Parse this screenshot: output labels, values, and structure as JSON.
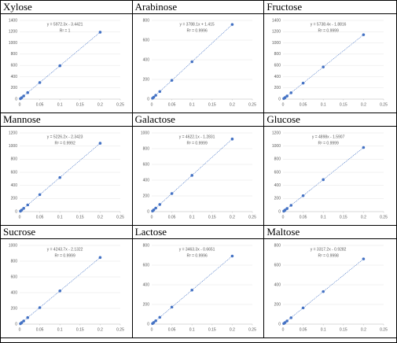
{
  "chart_data": [
    {
      "type": "scatter",
      "title": "Xylose",
      "x": [
        0.002,
        0.005,
        0.01,
        0.02,
        0.05,
        0.1,
        0.2
      ],
      "values": [
        8,
        26,
        56,
        116,
        295,
        594,
        1191
      ],
      "color": "#4472c4",
      "trendline": {
        "label": "y = 5972.3x - 3.4421",
        "slope": 5972.3,
        "intercept": -3.4421
      },
      "r2_label": "R² = 1",
      "xlim": [
        0,
        0.25
      ],
      "xticks": [
        0,
        0.05,
        0.1,
        0.15,
        0.2,
        0.25
      ],
      "ylim": [
        0,
        1400
      ],
      "yticks": [
        0,
        200,
        400,
        600,
        800,
        1000,
        1200,
        1400
      ],
      "grid": true
    },
    {
      "type": "scatter",
      "title": "Arabinose",
      "x": [
        0.002,
        0.005,
        0.01,
        0.02,
        0.05,
        0.1,
        0.2
      ],
      "values": [
        9,
        20,
        39,
        77,
        191,
        380,
        759
      ],
      "color": "#4472c4",
      "trendline": {
        "label": "y = 3788.1x + 1.415",
        "slope": 3788.1,
        "intercept": 1.415
      },
      "r2_label": "R² = 0.9996",
      "xlim": [
        0,
        0.25
      ],
      "xticks": [
        0,
        0.05,
        0.1,
        0.15,
        0.2,
        0.25
      ],
      "ylim": [
        0,
        800
      ],
      "yticks": [
        0,
        200,
        400,
        600,
        800
      ],
      "grid": true
    },
    {
      "type": "scatter",
      "title": "Fructose",
      "x": [
        0.002,
        0.005,
        0.01,
        0.02,
        0.05,
        0.1,
        0.2
      ],
      "values": [
        10,
        27,
        55,
        113,
        285,
        572,
        1146
      ],
      "color": "#4472c4",
      "trendline": {
        "label": "y = 5738.4x - 1.8816",
        "slope": 5738.4,
        "intercept": -1.8816
      },
      "r2_label": "R² = 0.9999",
      "xlim": [
        0,
        0.25
      ],
      "xticks": [
        0,
        0.05,
        0.1,
        0.15,
        0.2,
        0.25
      ],
      "ylim": [
        0,
        1400
      ],
      "yticks": [
        0,
        200,
        400,
        600,
        800,
        1000,
        1200,
        1400
      ],
      "grid": true
    },
    {
      "type": "scatter",
      "title": "Mannose",
      "x": [
        0.002,
        0.005,
        0.01,
        0.02,
        0.05,
        0.1,
        0.2
      ],
      "values": [
        8,
        24,
        50,
        102,
        259,
        520,
        1043
      ],
      "color": "#4472c4",
      "trendline": {
        "label": "y = 5226.2x - 2.3423",
        "slope": 5226.2,
        "intercept": -2.3423
      },
      "r2_label": "R² = 0.9992",
      "xlim": [
        0,
        0.25
      ],
      "xticks": [
        0,
        0.05,
        0.1,
        0.15,
        0.2,
        0.25
      ],
      "ylim": [
        0,
        1200
      ],
      "yticks": [
        0,
        200,
        400,
        600,
        800,
        1000,
        1200
      ],
      "grid": true
    },
    {
      "type": "scatter",
      "title": "Galactose",
      "x": [
        0.002,
        0.005,
        0.01,
        0.02,
        0.05,
        0.1,
        0.2
      ],
      "values": [
        8,
        22,
        45,
        91,
        230,
        461,
        923
      ],
      "color": "#4472c4",
      "trendline": {
        "label": "y = 4622.1x - 1.2831",
        "slope": 4622.1,
        "intercept": -1.2831
      },
      "r2_label": "R² = 0.9999",
      "xlim": [
        0,
        0.25
      ],
      "xticks": [
        0,
        0.05,
        0.1,
        0.15,
        0.2,
        0.25
      ],
      "ylim": [
        0,
        1000
      ],
      "yticks": [
        0,
        200,
        400,
        600,
        800,
        1000
      ],
      "grid": true
    },
    {
      "type": "scatter",
      "title": "Glucose",
      "x": [
        0.002,
        0.005,
        0.01,
        0.02,
        0.05,
        0.1,
        0.2
      ],
      "values": [
        8,
        23,
        47,
        96,
        243,
        488,
        978
      ],
      "color": "#4472c4",
      "trendline": {
        "label": "y = 4898x - 1.5907",
        "slope": 4898,
        "intercept": -1.5907
      },
      "r2_label": "R² = 0.9999",
      "xlim": [
        0,
        0.25
      ],
      "xticks": [
        0,
        0.05,
        0.1,
        0.15,
        0.2,
        0.25
      ],
      "ylim": [
        0,
        1200
      ],
      "yticks": [
        0,
        200,
        400,
        600,
        800,
        1000,
        1200
      ],
      "grid": true
    },
    {
      "type": "scatter",
      "title": "Sucrose",
      "x": [
        0.002,
        0.005,
        0.01,
        0.02,
        0.05,
        0.1,
        0.2
      ],
      "values": [
        6,
        19,
        40,
        83,
        210,
        422,
        847
      ],
      "color": "#4472c4",
      "trendline": {
        "label": "y = 4243.7x - 2.1322",
        "slope": 4243.7,
        "intercept": -2.1322
      },
      "r2_label": "R² = 0.9999",
      "xlim": [
        0,
        0.25
      ],
      "xticks": [
        0,
        0.05,
        0.1,
        0.15,
        0.2,
        0.25
      ],
      "ylim": [
        0,
        1000
      ],
      "yticks": [
        0,
        200,
        400,
        600,
        800,
        1000
      ],
      "grid": true
    },
    {
      "type": "scatter",
      "title": "Lactose",
      "x": [
        0.002,
        0.005,
        0.01,
        0.02,
        0.05,
        0.1,
        0.2
      ],
      "values": [
        6,
        17,
        34,
        69,
        173,
        346,
        692
      ],
      "color": "#4472c4",
      "trendline": {
        "label": "y = 3463.3x - 0.6651",
        "slope": 3463.3,
        "intercept": -0.6651
      },
      "r2_label": "R² = 0.9996",
      "xlim": [
        0,
        0.25
      ],
      "xticks": [
        0,
        0.05,
        0.1,
        0.15,
        0.2,
        0.25
      ],
      "ylim": [
        0,
        800
      ],
      "yticks": [
        0,
        200,
        400,
        600,
        800
      ],
      "grid": true
    },
    {
      "type": "scatter",
      "title": "Maltose",
      "x": [
        0.002,
        0.005,
        0.01,
        0.02,
        0.05,
        0.1,
        0.2
      ],
      "values": [
        6,
        16,
        32,
        65,
        165,
        331,
        663
      ],
      "color": "#4472c4",
      "trendline": {
        "label": "y = 3317.2x - 0.9282",
        "slope": 3317.2,
        "intercept": -0.9282
      },
      "r2_label": "R² = 0.9998",
      "xlim": [
        0,
        0.25
      ],
      "xticks": [
        0,
        0.05,
        0.1,
        0.15,
        0.2,
        0.25
      ],
      "ylim": [
        0,
        800
      ],
      "yticks": [
        0,
        200,
        400,
        600,
        800
      ],
      "grid": true
    }
  ]
}
